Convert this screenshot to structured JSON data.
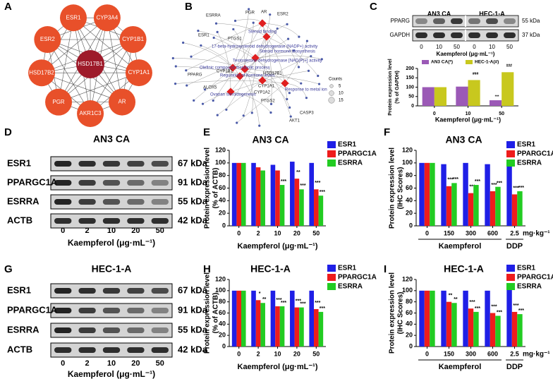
{
  "panel_labels": [
    "A",
    "B",
    "C",
    "D",
    "E",
    "F",
    "G",
    "H",
    "I"
  ],
  "network_a": {
    "nodes": [
      "ESR1",
      "CYP3A4",
      "CYP1B1",
      "CYP1A1",
      "AR",
      "AKR1C3",
      "PGR",
      "HSD17B2",
      "ESR2"
    ],
    "center": "HSD17B1"
  },
  "network_b": {
    "labels": [
      "ESRRA",
      "PGR",
      "AR",
      "ESR2",
      "ESR1",
      "PTGS1",
      "Steroid binding",
      "17-beta-hydroxysteroid dehydrogenase (NADP+) activity",
      "Steroid hormone biosynthesis",
      "Testosterone dehydrogenase [NAD(P)+] activity",
      "Olefinic compound metabolic process",
      "CYP1B1",
      "Regulation of hormone levels",
      "HSD17B1",
      "PPARG",
      "ALOX5",
      "CYP1A1",
      "CYP1A2",
      "Response to metal ion",
      "Ovarian steroidogenesis",
      "PTGS2",
      "CASP3",
      "AKT1"
    ],
    "counts_legend": {
      "title": "Counts",
      "values": [
        5,
        10,
        15
      ]
    }
  },
  "blots": [
    {
      "groups": [
        "AN3 CA",
        "HEC-1-A"
      ],
      "rows": [
        "PPARG",
        "GAPDH"
      ],
      "sizes": [
        "55 kDa",
        "37 kDa"
      ],
      "lanes": [
        0,
        10,
        50,
        0,
        10,
        50
      ],
      "xlabel": "Kaempferol (μg·mL⁻¹)"
    },
    {
      "title": "AN3 CA",
      "rows": [
        "ESR1",
        "PPARGC1A",
        "ESRRA",
        "ACTB"
      ],
      "sizes": [
        "67 kDa",
        "91 kDa",
        "55 kDa",
        "42 kDa"
      ],
      "lanes": [
        0,
        2,
        10,
        20,
        50
      ],
      "xlabel": "Kaempferol (μg·mL⁻¹)"
    },
    {
      "title": "HEC-1-A",
      "rows": [
        "ESR1",
        "PPARGC1A",
        "ESRRA",
        "ACTB"
      ],
      "sizes": [
        "67 kDa",
        "91 kDa",
        "55 kDa",
        "42 kDa"
      ],
      "lanes": [
        0,
        2,
        10,
        20,
        50
      ],
      "xlabel": "Kaempferol (μg·mL⁻¹)"
    }
  ],
  "chart_data": [
    {
      "type": "bar",
      "ylabel": [
        "Protein expression level",
        "(% of GAPDH)"
      ],
      "xlabel": "Kaempferol (μg·mL⁻¹)",
      "categories": [
        0,
        10,
        50
      ],
      "ylim": [
        0,
        200
      ],
      "yticks": [
        0,
        50,
        100,
        150,
        200
      ],
      "legend": "top",
      "series": [
        {
          "name": "AN3 CA(*)",
          "color": "#9b59b6",
          "values": [
            100,
            103,
            30
          ],
          "sig": [
            null,
            null,
            "***"
          ]
        },
        {
          "name": "HEC-1-A(#)",
          "color": "#c8c81e",
          "values": [
            100,
            138,
            180
          ],
          "sig": [
            null,
            "###",
            "###"
          ]
        }
      ]
    },
    {
      "type": "bar",
      "title": "AN3 CA",
      "ylabel": [
        "Protein expression level",
        "(% of ACTB)"
      ],
      "xlabel": "Kaempferol (μg·mL⁻¹)",
      "categories": [
        0,
        2,
        10,
        20,
        50
      ],
      "ylim": [
        0,
        120
      ],
      "yticks": [
        0,
        20,
        40,
        60,
        80,
        100,
        120
      ],
      "legend": "right",
      "series": [
        {
          "name": "ESR1",
          "color": "#1f1fe6",
          "values": [
            100,
            100,
            97,
            102,
            100
          ],
          "sig": [
            null,
            null,
            null,
            null,
            null
          ]
        },
        {
          "name": "PPARGC1A",
          "color": "#ee1c1c",
          "values": [
            100,
            93,
            88,
            75,
            58
          ],
          "sig": [
            null,
            null,
            null,
            "**",
            "***"
          ]
        },
        {
          "name": "ESRRA",
          "color": "#22cc22",
          "values": [
            100,
            88,
            65,
            58,
            48
          ],
          "sig": [
            null,
            null,
            "***",
            "***",
            "***"
          ]
        }
      ]
    },
    {
      "type": "bar",
      "title": "AN3 CA",
      "ylabel": [
        "Protein expression level",
        "(IHC Scores)"
      ],
      "categories": [
        0,
        150,
        300,
        600,
        2.5
      ],
      "x_groups": [
        {
          "label": "Kaempferol",
          "span": 4
        },
        {
          "label": "DDP",
          "span": 1
        }
      ],
      "x_unit": "mg·kg⁻¹",
      "ylim": [
        0,
        120
      ],
      "yticks": [
        0,
        20,
        40,
        60,
        80,
        100,
        120
      ],
      "legend": "right",
      "series": [
        {
          "name": "ESR1",
          "color": "#1f1fe6",
          "values": [
            100,
            98,
            100,
            98,
            100
          ],
          "sig": [
            null,
            null,
            null,
            null,
            null
          ]
        },
        {
          "name": "PPARGC1A",
          "color": "#ee1c1c",
          "values": [
            100,
            63,
            52,
            55,
            50
          ],
          "sig": [
            null,
            "***",
            "***",
            "***",
            "***"
          ]
        },
        {
          "name": "ESRRA",
          "color": "#22cc22",
          "values": [
            100,
            68,
            65,
            62,
            55
          ],
          "sig": [
            null,
            "***",
            "***",
            "***",
            "***"
          ]
        }
      ]
    },
    {
      "type": "bar",
      "title": "HEC-1-A",
      "ylabel": [
        "Protein expression level",
        "(% of ACTB)"
      ],
      "xlabel": "Kaempferol (μg·mL⁻¹)",
      "categories": [
        0,
        2,
        10,
        20,
        50
      ],
      "ylim": [
        0,
        120
      ],
      "yticks": [
        0,
        20,
        40,
        60,
        80,
        100,
        120
      ],
      "legend": "right",
      "series": [
        {
          "name": "ESR1",
          "color": "#1f1fe6",
          "values": [
            100,
            100,
            100,
            100,
            100
          ],
          "sig": [
            null,
            null,
            null,
            null,
            null
          ]
        },
        {
          "name": "PPARGC1A",
          "color": "#ee1c1c",
          "values": [
            100,
            83,
            72,
            70,
            67
          ],
          "sig": [
            null,
            "*",
            "***",
            "***",
            "***"
          ]
        },
        {
          "name": "ESRRA",
          "color": "#22cc22",
          "values": [
            100,
            78,
            72,
            70,
            62
          ],
          "sig": [
            null,
            "**",
            "***",
            "***",
            "***"
          ]
        }
      ]
    },
    {
      "type": "bar",
      "title": "HEC-1-A",
      "ylabel": [
        "Protein expression level",
        "(IHC Scores)"
      ],
      "categories": [
        0,
        150,
        300,
        600,
        2.5
      ],
      "x_groups": [
        {
          "label": "Kaempferol",
          "span": 4
        },
        {
          "label": "DDP",
          "span": 1
        }
      ],
      "x_unit": "mg·kg⁻¹",
      "ylim": [
        0,
        120
      ],
      "yticks": [
        0,
        20,
        40,
        60,
        80,
        100,
        120
      ],
      "legend": "right",
      "series": [
        {
          "name": "ESR1",
          "color": "#1f1fe6",
          "values": [
            100,
            100,
            100,
            100,
            102
          ],
          "sig": [
            null,
            null,
            null,
            null,
            null
          ]
        },
        {
          "name": "PPARGC1A",
          "color": "#ee1c1c",
          "values": [
            100,
            80,
            68,
            60,
            62
          ],
          "sig": [
            null,
            "**",
            "***",
            "***",
            "***"
          ]
        },
        {
          "name": "ESRRA",
          "color": "#22cc22",
          "values": [
            100,
            78,
            62,
            55,
            58
          ],
          "sig": [
            null,
            "**",
            "***",
            "***",
            "***"
          ]
        }
      ]
    }
  ]
}
